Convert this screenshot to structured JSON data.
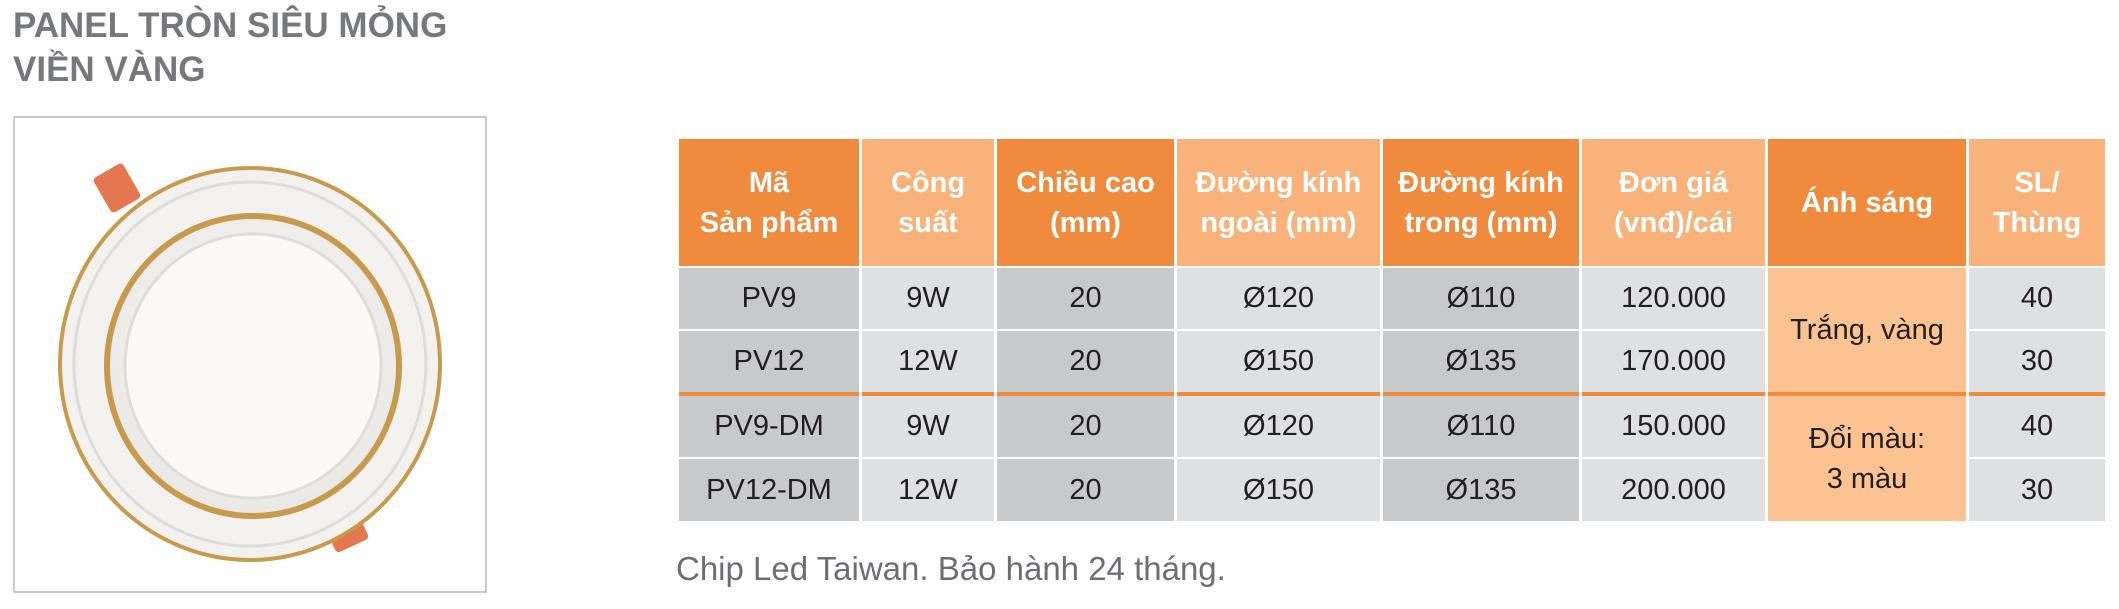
{
  "header": {
    "title": [
      "PANEL TRÒN SIÊU MỎNG",
      "VIỀN VÀNG"
    ]
  },
  "table": {
    "columns": [
      [
        "Mã",
        "Sản phẩm"
      ],
      [
        "Công",
        "suất"
      ],
      [
        "Chiều cao",
        "(mm)"
      ],
      [
        "Đường kính",
        "ngoài (mm)"
      ],
      [
        "Đường kính",
        "trong (mm)"
      ],
      [
        "Đơn giá",
        "(vnđ)/cái"
      ],
      [
        "Ánh sáng"
      ],
      [
        "SL/",
        "Thùng"
      ]
    ],
    "groups": [
      {
        "light": [
          "Trắng, vàng"
        ],
        "rows": [
          [
            "PV9",
            "9W",
            "20",
            "Ø120",
            "Ø110",
            "120.000",
            "40"
          ],
          [
            "PV12",
            "12W",
            "20",
            "Ø150",
            "Ø135",
            "170.000",
            "30"
          ]
        ]
      },
      {
        "light": [
          "Đổi màu:",
          "3 màu"
        ],
        "rows": [
          [
            "PV9-DM",
            "9W",
            "20",
            "Ø120",
            "Ø110",
            "150.000",
            "40"
          ],
          [
            "PV12-DM",
            "12W",
            "20",
            "Ø150",
            "Ø135",
            "200.000",
            "30"
          ]
        ]
      }
    ]
  },
  "footer": "Chip Led Taiwan. Bảo hành 24 tháng."
}
